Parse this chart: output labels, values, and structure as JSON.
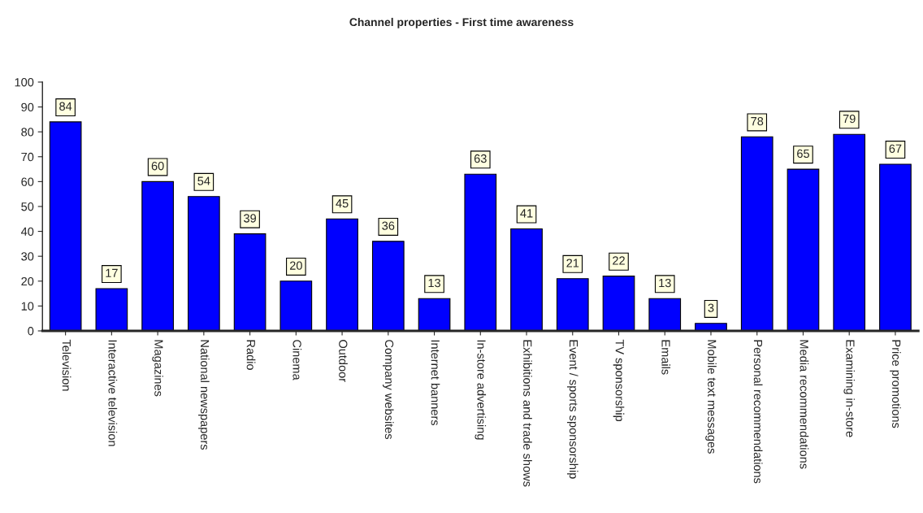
{
  "chart_data": {
    "type": "bar",
    "title": "Channel properties - First time awareness",
    "categories": [
      "Television",
      "Interactive television",
      "Magazines",
      "National newspapers",
      "Radio",
      "Cinema",
      "Outdoor",
      "Company websites",
      "Internet banners",
      "In-store advertising",
      "Exhibitions and trade shows",
      "Event / sports sponsorship",
      "TV sponsorship",
      "Emails",
      "Mobile text messages",
      "Personal recommendations",
      "Media recommendations",
      "Examining in-store",
      "Price promotions"
    ],
    "values": [
      84,
      17,
      60,
      54,
      39,
      20,
      45,
      36,
      13,
      63,
      41,
      21,
      22,
      13,
      3,
      78,
      65,
      79,
      67
    ],
    "color": "#0000ff",
    "ylim": [
      0,
      100
    ],
    "yticks": [
      0,
      10,
      20,
      30,
      40,
      50,
      60,
      70,
      80,
      90,
      100
    ],
    "grid": false,
    "data_labels": true
  }
}
